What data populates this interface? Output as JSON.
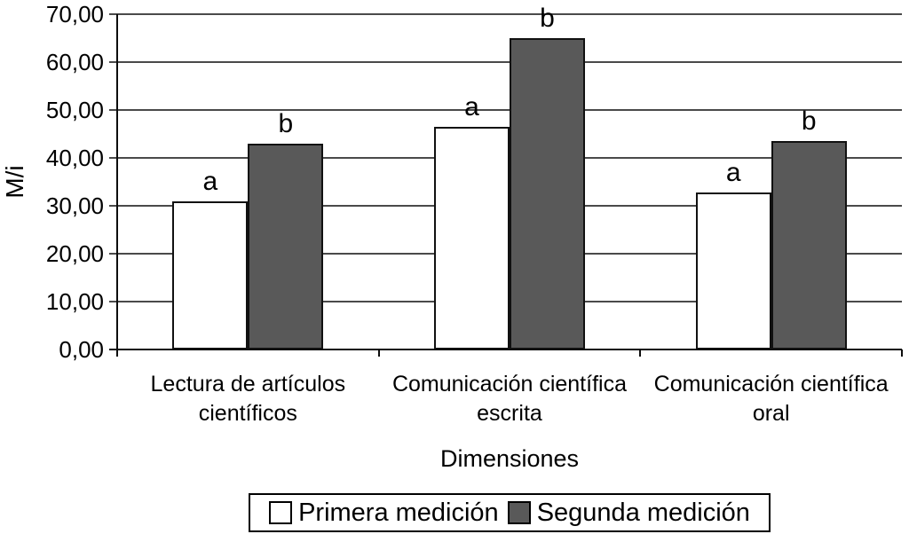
{
  "chart_data": {
    "type": "bar",
    "title": "",
    "xlabel": "Dimensiones",
    "ylabel": "M/i",
    "ylim": [
      0,
      70
    ],
    "ytick_step": 10,
    "ytick_labels": [
      "0,00",
      "10,00",
      "20,00",
      "30,00",
      "40,00",
      "50,00",
      "60,00",
      "70,00"
    ],
    "categories": [
      "Lectura de artículos científicos",
      "Comunicación científica escrita",
      "Comunicación científica oral"
    ],
    "categories_lines": [
      [
        "Lectura de artículos",
        "científicos"
      ],
      [
        "Comunicación científica",
        "escrita"
      ],
      [
        "Comunicación científica",
        "oral"
      ]
    ],
    "series": [
      {
        "name": "Primera medición",
        "letter": "a",
        "color": "#ffffff",
        "values": [
          31.0,
          46.5,
          32.8
        ]
      },
      {
        "name": "Segunda medición",
        "letter": "b",
        "color": "#595959",
        "values": [
          43.0,
          65.0,
          43.5
        ]
      }
    ],
    "annotations": "letters a/b mark significance above each bar",
    "legend_position": "bottom",
    "grid": true,
    "colors": {
      "bar_border": "#111111",
      "gridline": "#4a4a4a",
      "axis": "#0d0d0d",
      "background": "#ffffff"
    }
  }
}
